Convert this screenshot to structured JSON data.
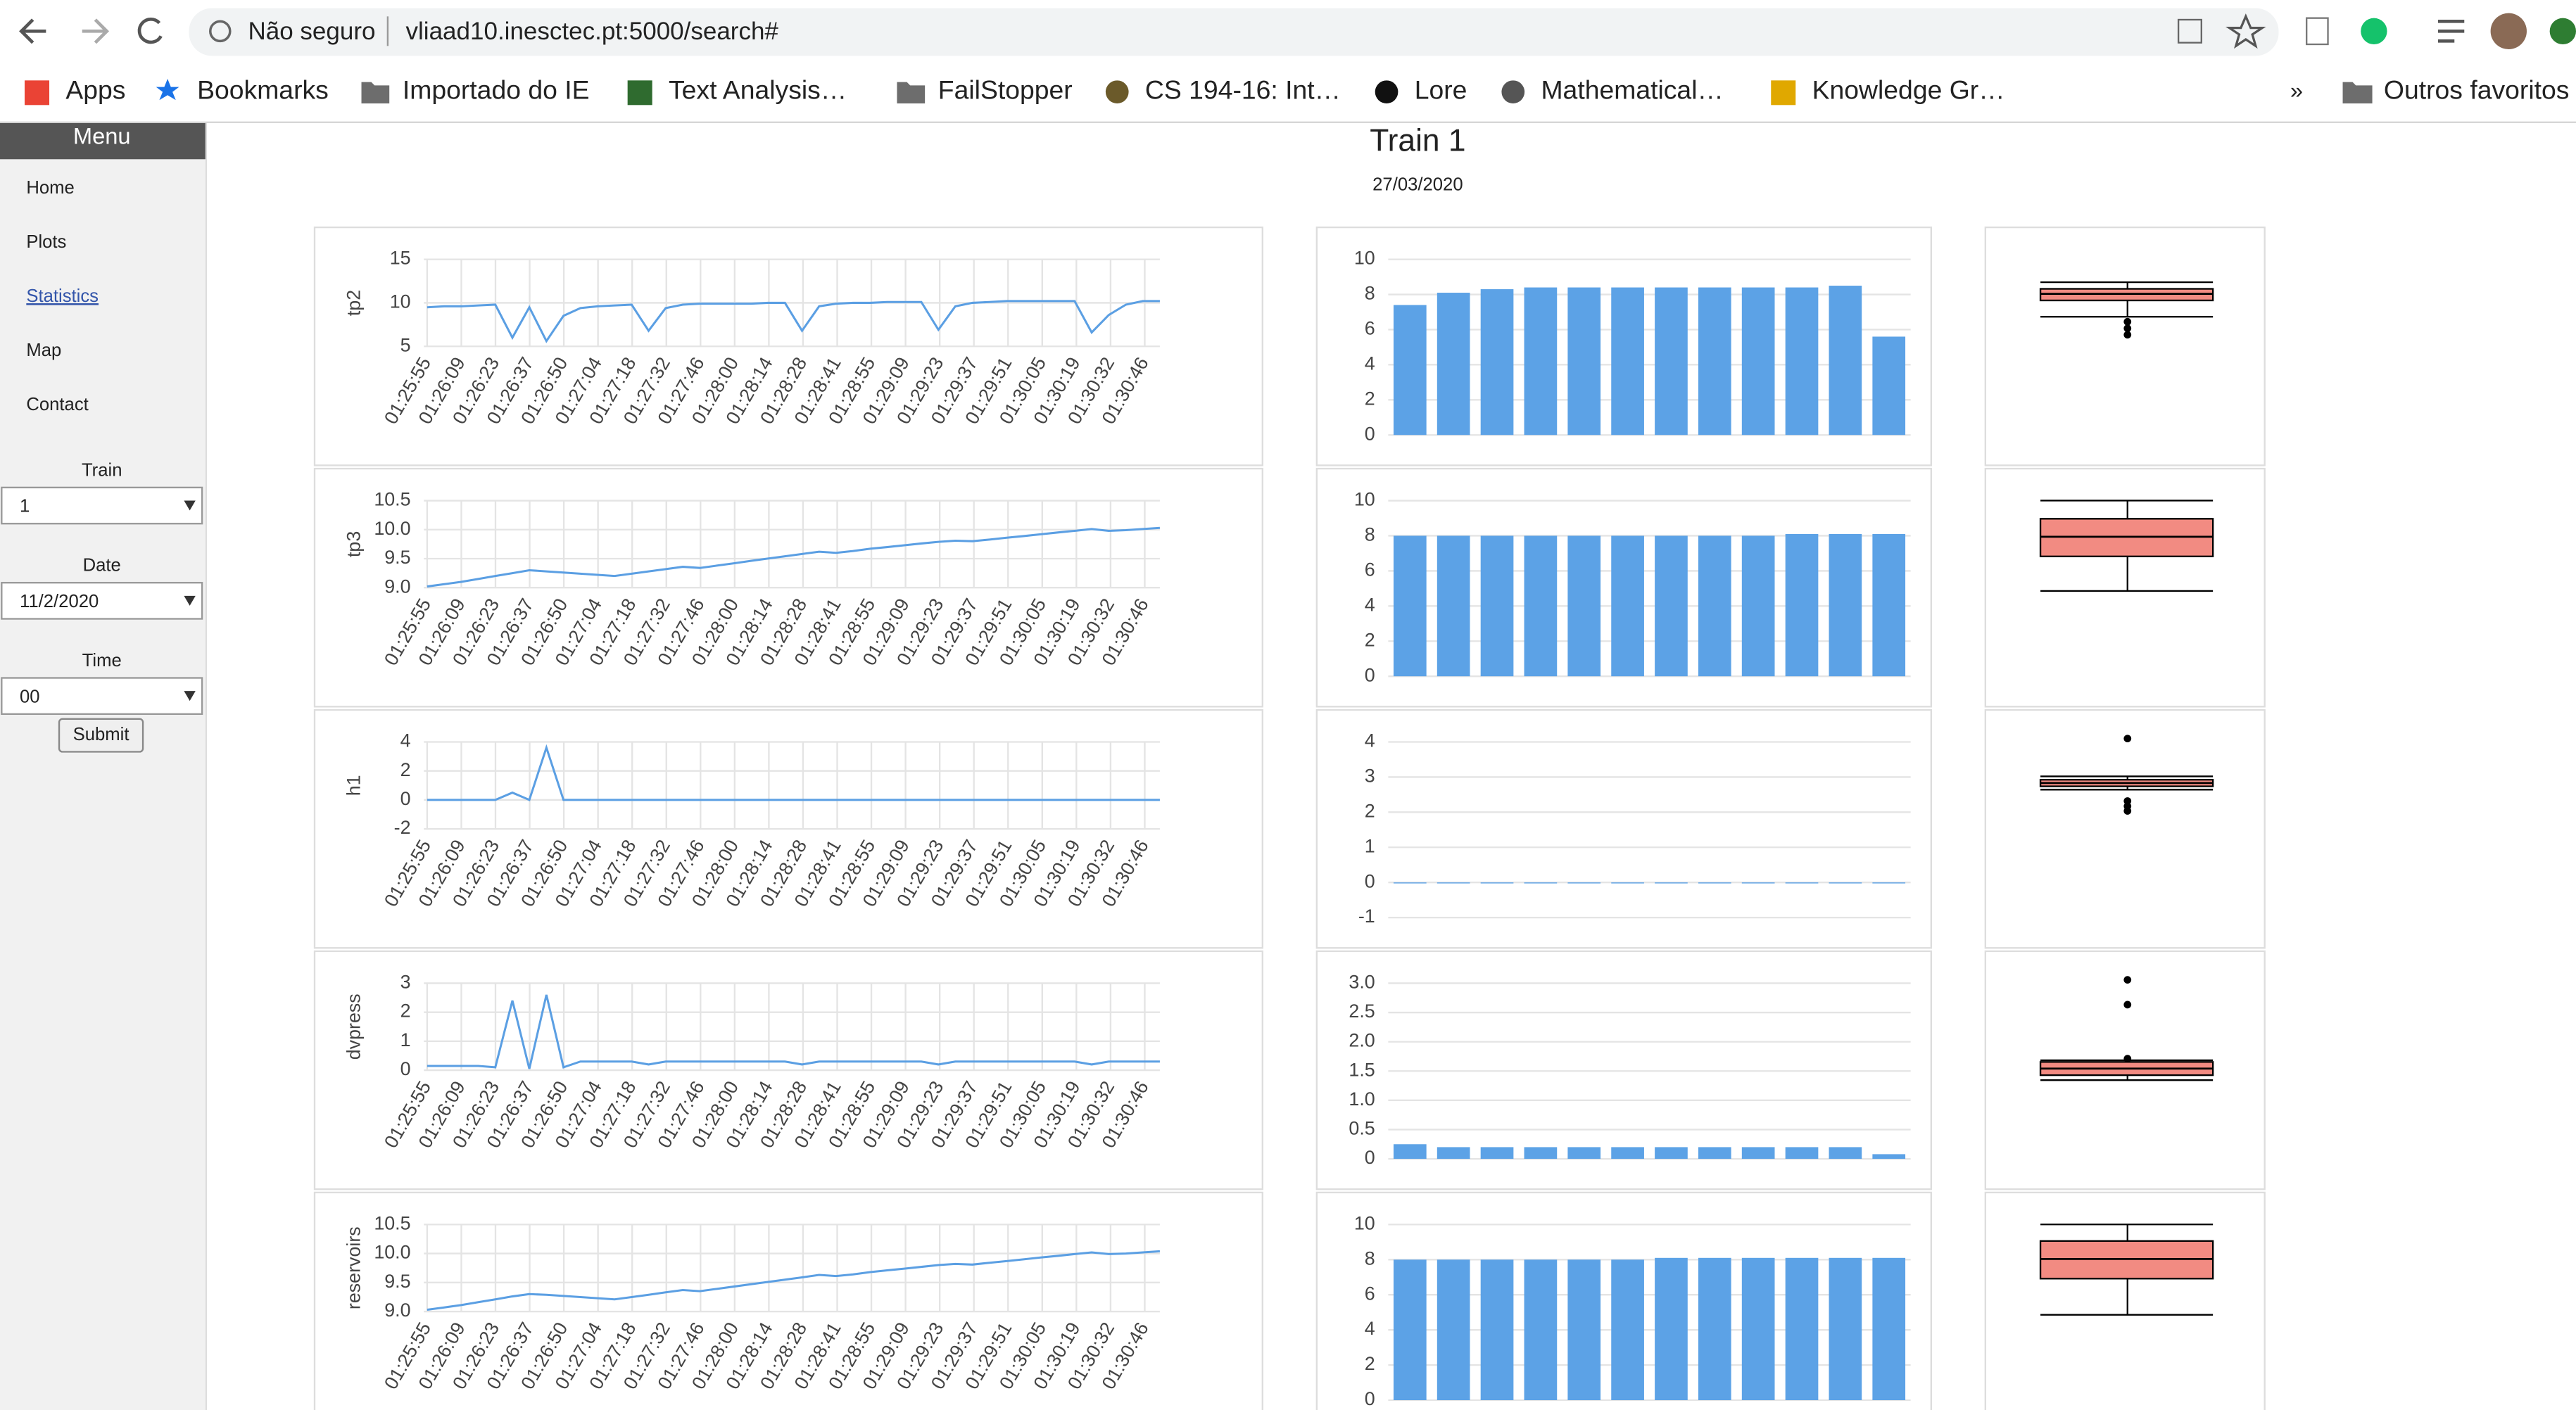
{
  "browser": {
    "security": "Não seguro",
    "url": "vliaad10.inesctec.pt:5000/search#",
    "bookmarks": [
      "Apps",
      "Bookmarks",
      "Importado do IE",
      "Text Analysis…",
      "FailStopper",
      "CS 194-16: Int…",
      "Lore",
      "Mathematical…",
      "Knowledge Gr…"
    ],
    "more": "»",
    "other_bookmarks": "Outros favoritos"
  },
  "sidebar": {
    "title": "Menu",
    "links": [
      "Home",
      "Plots",
      "Statistics",
      "Map",
      "Contact"
    ],
    "fields": [
      {
        "label": "Train",
        "value": "1"
      },
      {
        "label": "Date",
        "value": "11/2/2020"
      },
      {
        "label": "Time",
        "value": "00"
      }
    ],
    "button": "Submit"
  },
  "header": {
    "title": "Train 1",
    "date": "27/03/2020"
  },
  "time_labels": [
    "01:25:55",
    "01:26:09",
    "01:26:23",
    "01:26:37",
    "01:26:50",
    "01:27:04",
    "01:27:18",
    "01:27:32",
    "01:27:46",
    "01:28:00",
    "01:28:14",
    "01:28:28",
    "01:28:41",
    "01:28:55",
    "01:29:09",
    "01:29:23",
    "01:29:37",
    "01:29:51",
    "01:30:05",
    "01:30:19",
    "01:30:32",
    "01:30:46"
  ],
  "rows": [
    {
      "line": {
        "type": "line",
        "y_label": "tp2",
        "ylim": [
          5,
          15
        ],
        "yticks": [
          5,
          10,
          15
        ],
        "color": "#5b9fe3",
        "values": [
          9.5,
          9.6,
          9.6,
          9.7,
          9.8,
          6.0,
          9.5,
          5.6,
          8.5,
          9.4,
          9.6,
          9.7,
          9.8,
          6.8,
          9.4,
          9.8,
          9.9,
          9.9,
          9.9,
          9.9,
          10.0,
          10.0,
          6.8,
          9.6,
          9.9,
          10.0,
          10.0,
          10.1,
          10.1,
          10.1,
          6.9,
          9.6,
          10.0,
          10.1,
          10.2,
          10.2,
          10.2,
          10.2,
          10.2,
          6.6,
          8.6,
          9.8,
          10.2,
          10.2
        ]
      },
      "bar": {
        "type": "bar",
        "ylim": [
          0,
          10
        ],
        "yticks": [
          0,
          2,
          4,
          6,
          8,
          10
        ],
        "color": "#5ca2e6",
        "values": [
          7.4,
          8.1,
          8.3,
          8.4,
          8.4,
          8.4,
          8.4,
          8.4,
          8.4,
          8.4,
          8.5,
          5.6
        ]
      },
      "box": {
        "type": "box",
        "ylim": [
          0,
          10
        ],
        "color": "#f28b82",
        "whisker_high": 8.1,
        "q3": 7.78,
        "median": 7.54,
        "q1": 7.22,
        "whisker_low": 6.43,
        "outliers": [
          6.19,
          5.87,
          5.56
        ]
      }
    },
    {
      "line": {
        "type": "line",
        "y_label": "tp3",
        "ylim": [
          9,
          10.5
        ],
        "yticks": [
          {
            "value": 9,
            "label": "9.0"
          },
          9.5,
          {
            "value": 10,
            "label": "10.0"
          },
          10.5
        ],
        "color": "#5b9fe3",
        "values": [
          9.02,
          9.06,
          9.1,
          9.15,
          9.2,
          9.25,
          9.3,
          9.28,
          9.26,
          9.24,
          9.22,
          9.2,
          9.24,
          9.28,
          9.32,
          9.36,
          9.34,
          9.38,
          9.42,
          9.46,
          9.5,
          9.54,
          9.58,
          9.62,
          9.6,
          9.63,
          9.67,
          9.7,
          9.73,
          9.76,
          9.79,
          9.81,
          9.8,
          9.83,
          9.86,
          9.89,
          9.92,
          9.95,
          9.98,
          10.01,
          9.98,
          9.99,
          10.01,
          10.03
        ]
      },
      "bar": {
        "type": "bar",
        "ylim": [
          0,
          10
        ],
        "yticks": [
          0,
          2,
          4,
          6,
          8,
          10
        ],
        "color": "#5ca2e6",
        "values": [
          8.0,
          8.0,
          8.0,
          8.0,
          8.0,
          8.0,
          8.0,
          8.0,
          8.0,
          8.1,
          8.1,
          8.1
        ]
      },
      "box": {
        "type": "box",
        "ylim": [
          0,
          10
        ],
        "color": "#f28b82",
        "whisker_high": 9.21,
        "q3": 8.33,
        "median": 7.46,
        "q1": 6.51,
        "whisker_low": 4.84,
        "outliers": []
      }
    },
    {
      "line": {
        "type": "line",
        "y_label": "h1",
        "ylim": [
          -2,
          4
        ],
        "yticks": [
          -2,
          0,
          2,
          4
        ],
        "color": "#5b9fe3",
        "values": [
          0,
          0,
          0,
          0,
          0,
          0.5,
          0,
          3.6,
          0,
          0,
          0,
          0,
          0,
          0,
          0,
          0,
          0,
          0,
          0,
          0,
          0,
          0,
          0,
          0,
          0,
          0,
          0,
          0,
          0,
          0,
          0,
          0,
          0,
          0,
          0,
          0,
          0,
          0,
          0,
          0,
          0,
          0,
          0,
          0
        ]
      },
      "bar": {
        "type": "bar",
        "ylim": [
          -1,
          4
        ],
        "yticks": [
          -1,
          0,
          1,
          2,
          3,
          4
        ],
        "color": "#5ca2e6",
        "values": [
          0,
          0,
          0,
          0,
          0,
          0,
          0,
          0,
          0,
          0,
          0,
          0
        ]
      },
      "box": {
        "type": "box",
        "ylim": [
          0,
          10
        ],
        "color": "#f28b82",
        "whisker_high": 7.54,
        "q3": 7.38,
        "median": 7.22,
        "q1": 7.06,
        "whisker_low": 6.9,
        "outliers": [
          9.37,
          6.35,
          6.1,
          5.87
        ]
      }
    },
    {
      "line": {
        "type": "line",
        "y_label": "dvpress",
        "ylim": [
          0,
          3
        ],
        "yticks": [
          0,
          1,
          2,
          3
        ],
        "color": "#5b9fe3",
        "values": [
          0.15,
          0.15,
          0.15,
          0.15,
          0.1,
          2.4,
          0.05,
          2.6,
          0.1,
          0.3,
          0.3,
          0.3,
          0.3,
          0.2,
          0.3,
          0.3,
          0.3,
          0.3,
          0.3,
          0.3,
          0.3,
          0.3,
          0.2,
          0.3,
          0.3,
          0.3,
          0.3,
          0.3,
          0.3,
          0.3,
          0.2,
          0.3,
          0.3,
          0.3,
          0.3,
          0.3,
          0.3,
          0.3,
          0.3,
          0.2,
          0.3,
          0.3,
          0.3,
          0.3
        ]
      },
      "bar": {
        "type": "bar",
        "ylim": [
          0,
          3
        ],
        "yticks": [
          0,
          0.5,
          {
            "value": 1,
            "label": "1.0"
          },
          1.5,
          {
            "value": 2,
            "label": "2.0"
          },
          2.5,
          {
            "value": 3,
            "label": "3.0"
          }
        ],
        "color": "#5ca2e6",
        "values": [
          0.25,
          0.2,
          0.2,
          0.2,
          0.2,
          0.2,
          0.2,
          0.2,
          0.2,
          0.2,
          0.2,
          0.08
        ]
      },
      "box": {
        "type": "box",
        "ylim": [
          0,
          10
        ],
        "color": "#f28b82",
        "whisker_high": 5.48,
        "q3": 5.4,
        "median": 5.08,
        "q1": 4.76,
        "whisker_low": 4.52,
        "outliers": [
          9.37,
          8.17,
          5.56
        ]
      }
    },
    {
      "line": {
        "type": "line",
        "y_label": "reservoirs",
        "ylim": [
          9,
          10.5
        ],
        "yticks": [
          {
            "value": 9,
            "label": "9.0"
          },
          9.5,
          {
            "value": 10,
            "label": "10.0"
          },
          10.5
        ],
        "color": "#5b9fe3",
        "values": [
          9.03,
          9.07,
          9.11,
          9.16,
          9.21,
          9.26,
          9.3,
          9.29,
          9.27,
          9.25,
          9.23,
          9.21,
          9.25,
          9.29,
          9.33,
          9.37,
          9.35,
          9.39,
          9.43,
          9.47,
          9.51,
          9.55,
          9.59,
          9.63,
          9.61,
          9.64,
          9.68,
          9.71,
          9.74,
          9.77,
          9.8,
          9.82,
          9.81,
          9.84,
          9.87,
          9.9,
          9.93,
          9.96,
          9.99,
          10.02,
          9.99,
          10.0,
          10.02,
          10.04
        ]
      },
      "bar": {
        "type": "bar",
        "ylim": [
          0,
          10
        ],
        "yticks": [
          0,
          2,
          4,
          6,
          8,
          10
        ],
        "color": "#5ca2e6",
        "values": [
          8.0,
          8.0,
          8.0,
          8.0,
          8.0,
          8.0,
          8.1,
          8.1,
          8.1,
          8.1,
          8.1,
          8.1
        ]
      },
      "box": {
        "type": "box",
        "ylim": [
          0,
          10
        ],
        "color": "#f28b82",
        "whisker_high": 9.21,
        "q3": 8.41,
        "median": 7.54,
        "q1": 6.59,
        "whisker_low": 4.84,
        "outliers": []
      }
    }
  ]
}
